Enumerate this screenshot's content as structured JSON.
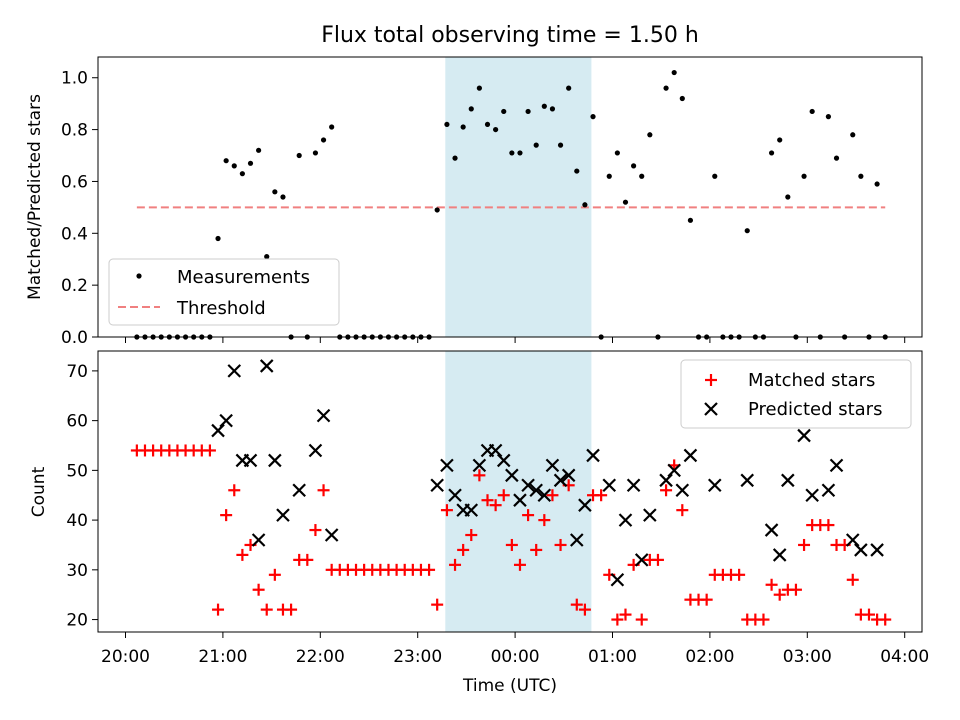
{
  "chart_data": [
    {
      "type": "scatter",
      "title": "Flux total observing time = 1.50 h",
      "ylabel": "Matched/Predicted stars",
      "xlabel": "",
      "ylim": [
        0,
        1.08
      ],
      "yticks": [
        "0.0",
        "0.2",
        "0.4",
        "0.6",
        "0.8",
        "1.0"
      ],
      "legend_position": "lower-left",
      "shaded_interval": [
        "23:17",
        "00:47"
      ],
      "series": [
        {
          "name": "Measurements",
          "color": "#000000",
          "points": [
            [
              "20:07",
              0
            ],
            [
              "20:12",
              0
            ],
            [
              "20:17",
              0
            ],
            [
              "20:22",
              0
            ],
            [
              "20:27",
              0
            ],
            [
              "20:32",
              0
            ],
            [
              "20:37",
              0
            ],
            [
              "20:42",
              0
            ],
            [
              "20:47",
              0
            ],
            [
              "20:52",
              0
            ],
            [
              "20:57",
              0.38
            ],
            [
              "21:02",
              0.68
            ],
            [
              "21:07",
              0.66
            ],
            [
              "21:12",
              0.63
            ],
            [
              "21:17",
              0.67
            ],
            [
              "21:22",
              0.72
            ],
            [
              "21:27",
              0.31
            ],
            [
              "21:32",
              0.56
            ],
            [
              "21:37",
              0.54
            ],
            [
              "21:42",
              0
            ],
            [
              "21:47",
              0.7
            ],
            [
              "21:52",
              0
            ],
            [
              "21:57",
              0.71
            ],
            [
              "22:02",
              0.76
            ],
            [
              "22:07",
              0.81
            ],
            [
              "22:12",
              0
            ],
            [
              "22:17",
              0
            ],
            [
              "22:22",
              0
            ],
            [
              "22:27",
              0
            ],
            [
              "22:32",
              0
            ],
            [
              "22:37",
              0
            ],
            [
              "22:42",
              0
            ],
            [
              "22:47",
              0
            ],
            [
              "22:52",
              0
            ],
            [
              "22:57",
              0
            ],
            [
              "23:02",
              0
            ],
            [
              "23:07",
              0
            ],
            [
              "23:12",
              0.49
            ],
            [
              "23:18",
              0.82
            ],
            [
              "23:23",
              0.69
            ],
            [
              "23:28",
              0.81
            ],
            [
              "23:33",
              0.88
            ],
            [
              "23:38",
              0.96
            ],
            [
              "23:43",
              0.82
            ],
            [
              "23:48",
              0.8
            ],
            [
              "23:53",
              0.87
            ],
            [
              "23:58",
              0.71
            ],
            [
              "00:03",
              0.71
            ],
            [
              "00:08",
              0.87
            ],
            [
              "00:13",
              0.74
            ],
            [
              "00:18",
              0.89
            ],
            [
              "00:23",
              0.88
            ],
            [
              "00:28",
              0.74
            ],
            [
              "00:33",
              0.96
            ],
            [
              "00:38",
              0.64
            ],
            [
              "00:43",
              0.51
            ],
            [
              "00:48",
              0.85
            ],
            [
              "00:53",
              0
            ],
            [
              "00:58",
              0.62
            ],
            [
              "01:03",
              0.71
            ],
            [
              "01:08",
              0.52
            ],
            [
              "01:13",
              0.66
            ],
            [
              "01:18",
              0.62
            ],
            [
              "01:23",
              0.78
            ],
            [
              "01:28",
              0
            ],
            [
              "01:33",
              0.96
            ],
            [
              "01:38",
              1.02
            ],
            [
              "01:43",
              0.92
            ],
            [
              "01:48",
              0.45
            ],
            [
              "01:53",
              0
            ],
            [
              "01:58",
              0
            ],
            [
              "02:03",
              0.62
            ],
            [
              "02:08",
              0
            ],
            [
              "02:13",
              0
            ],
            [
              "02:18",
              0
            ],
            [
              "02:23",
              0.41
            ],
            [
              "02:28",
              0
            ],
            [
              "02:33",
              0
            ],
            [
              "02:38",
              0.71
            ],
            [
              "02:43",
              0.76
            ],
            [
              "02:48",
              0.54
            ],
            [
              "02:53",
              0
            ],
            [
              "02:58",
              0.62
            ],
            [
              "03:03",
              0.87
            ],
            [
              "03:08",
              0
            ],
            [
              "03:13",
              0.85
            ],
            [
              "03:18",
              0.69
            ],
            [
              "03:23",
              0
            ],
            [
              "03:28",
              0.78
            ],
            [
              "03:33",
              0.62
            ],
            [
              "03:38",
              0
            ],
            [
              "03:43",
              0.59
            ],
            [
              "03:48",
              0
            ]
          ]
        },
        {
          "name": "Threshold",
          "color": "#f08080",
          "style": "dashed",
          "points": [
            [
              "20:07",
              0.5
            ],
            [
              "03:48",
              0.5
            ]
          ]
        }
      ]
    },
    {
      "type": "scatter",
      "title": "",
      "ylabel": "Count",
      "xlabel": "Time (UTC)",
      "ylim": [
        17.5,
        74
      ],
      "yticks": [
        "20",
        "30",
        "40",
        "50",
        "60",
        "70"
      ],
      "xticks": [
        "20:00",
        "21:00",
        "22:00",
        "23:00",
        "00:00",
        "01:00",
        "02:00",
        "03:00",
        "04:00"
      ],
      "legend_position": "upper-right",
      "shaded_interval": [
        "23:17",
        "00:47"
      ],
      "series": [
        {
          "name": "Matched stars",
          "color": "#ff0000",
          "marker": "plus",
          "points": [
            [
              "20:07",
              54
            ],
            [
              "20:12",
              54
            ],
            [
              "20:17",
              54
            ],
            [
              "20:22",
              54
            ],
            [
              "20:27",
              54
            ],
            [
              "20:32",
              54
            ],
            [
              "20:37",
              54
            ],
            [
              "20:42",
              54
            ],
            [
              "20:47",
              54
            ],
            [
              "20:52",
              54
            ],
            [
              "20:57",
              22
            ],
            [
              "21:02",
              41
            ],
            [
              "21:07",
              46
            ],
            [
              "21:12",
              33
            ],
            [
              "21:17",
              35
            ],
            [
              "21:22",
              26
            ],
            [
              "21:27",
              22
            ],
            [
              "21:32",
              29
            ],
            [
              "21:37",
              22
            ],
            [
              "21:42",
              22
            ],
            [
              "21:47",
              32
            ],
            [
              "21:52",
              32
            ],
            [
              "21:57",
              38
            ],
            [
              "22:02",
              46
            ],
            [
              "22:07",
              30
            ],
            [
              "22:12",
              30
            ],
            [
              "22:17",
              30
            ],
            [
              "22:22",
              30
            ],
            [
              "22:27",
              30
            ],
            [
              "22:32",
              30
            ],
            [
              "22:37",
              30
            ],
            [
              "22:42",
              30
            ],
            [
              "22:47",
              30
            ],
            [
              "22:52",
              30
            ],
            [
              "22:57",
              30
            ],
            [
              "23:02",
              30
            ],
            [
              "23:07",
              30
            ],
            [
              "23:12",
              23
            ],
            [
              "23:18",
              42
            ],
            [
              "23:23",
              31
            ],
            [
              "23:28",
              34
            ],
            [
              "23:33",
              37
            ],
            [
              "23:38",
              49
            ],
            [
              "23:43",
              44
            ],
            [
              "23:48",
              43
            ],
            [
              "23:53",
              45
            ],
            [
              "23:58",
              35
            ],
            [
              "00:03",
              31
            ],
            [
              "00:08",
              41
            ],
            [
              "00:13",
              34
            ],
            [
              "00:18",
              40
            ],
            [
              "00:23",
              45
            ],
            [
              "00:28",
              35
            ],
            [
              "00:33",
              47
            ],
            [
              "00:38",
              23
            ],
            [
              "00:43",
              22
            ],
            [
              "00:48",
              45
            ],
            [
              "00:53",
              45
            ],
            [
              "00:58",
              29
            ],
            [
              "01:03",
              20
            ],
            [
              "01:08",
              21
            ],
            [
              "01:13",
              31
            ],
            [
              "01:18",
              20
            ],
            [
              "01:23",
              32
            ],
            [
              "01:28",
              32
            ],
            [
              "01:33",
              46
            ],
            [
              "01:38",
              51
            ],
            [
              "01:43",
              42
            ],
            [
              "01:48",
              24
            ],
            [
              "01:53",
              24
            ],
            [
              "01:58",
              24
            ],
            [
              "02:03",
              29
            ],
            [
              "02:08",
              29
            ],
            [
              "02:13",
              29
            ],
            [
              "02:18",
              29
            ],
            [
              "02:23",
              20
            ],
            [
              "02:28",
              20
            ],
            [
              "02:33",
              20
            ],
            [
              "02:38",
              27
            ],
            [
              "02:43",
              25
            ],
            [
              "02:48",
              26
            ],
            [
              "02:53",
              26
            ],
            [
              "02:58",
              35
            ],
            [
              "03:03",
              39
            ],
            [
              "03:08",
              39
            ],
            [
              "03:13",
              39
            ],
            [
              "03:18",
              35
            ],
            [
              "03:23",
              35
            ],
            [
              "03:28",
              28
            ],
            [
              "03:33",
              21
            ],
            [
              "03:38",
              21
            ],
            [
              "03:43",
              20
            ],
            [
              "03:48",
              20
            ]
          ]
        },
        {
          "name": "Predicted stars",
          "color": "#000000",
          "marker": "cross",
          "points": [
            [
              "20:57",
              58
            ],
            [
              "21:02",
              60
            ],
            [
              "21:07",
              70
            ],
            [
              "21:12",
              52
            ],
            [
              "21:17",
              52
            ],
            [
              "21:22",
              36
            ],
            [
              "21:27",
              71
            ],
            [
              "21:32",
              52
            ],
            [
              "21:37",
              41
            ],
            [
              "21:47",
              46
            ],
            [
              "21:57",
              54
            ],
            [
              "22:02",
              61
            ],
            [
              "22:07",
              37
            ],
            [
              "23:12",
              47
            ],
            [
              "23:18",
              51
            ],
            [
              "23:23",
              45
            ],
            [
              "23:28",
              42
            ],
            [
              "23:33",
              42
            ],
            [
              "23:38",
              51
            ],
            [
              "23:43",
              54
            ],
            [
              "23:48",
              54
            ],
            [
              "23:53",
              52
            ],
            [
              "23:58",
              49
            ],
            [
              "00:03",
              44
            ],
            [
              "00:08",
              47
            ],
            [
              "00:13",
              46
            ],
            [
              "00:18",
              45
            ],
            [
              "00:23",
              51
            ],
            [
              "00:28",
              48
            ],
            [
              "00:33",
              49
            ],
            [
              "00:38",
              36
            ],
            [
              "00:43",
              43
            ],
            [
              "00:48",
              53
            ],
            [
              "00:58",
              47
            ],
            [
              "01:03",
              28
            ],
            [
              "01:08",
              40
            ],
            [
              "01:13",
              47
            ],
            [
              "01:18",
              32
            ],
            [
              "01:23",
              41
            ],
            [
              "01:33",
              48
            ],
            [
              "01:38",
              50
            ],
            [
              "01:43",
              46
            ],
            [
              "01:48",
              53
            ],
            [
              "02:03",
              47
            ],
            [
              "02:23",
              48
            ],
            [
              "02:38",
              38
            ],
            [
              "02:43",
              33
            ],
            [
              "02:48",
              48
            ],
            [
              "02:58",
              57
            ],
            [
              "03:03",
              45
            ],
            [
              "03:13",
              46
            ],
            [
              "03:18",
              51
            ],
            [
              "03:28",
              36
            ],
            [
              "03:33",
              34
            ],
            [
              "03:43",
              34
            ]
          ]
        }
      ]
    }
  ]
}
